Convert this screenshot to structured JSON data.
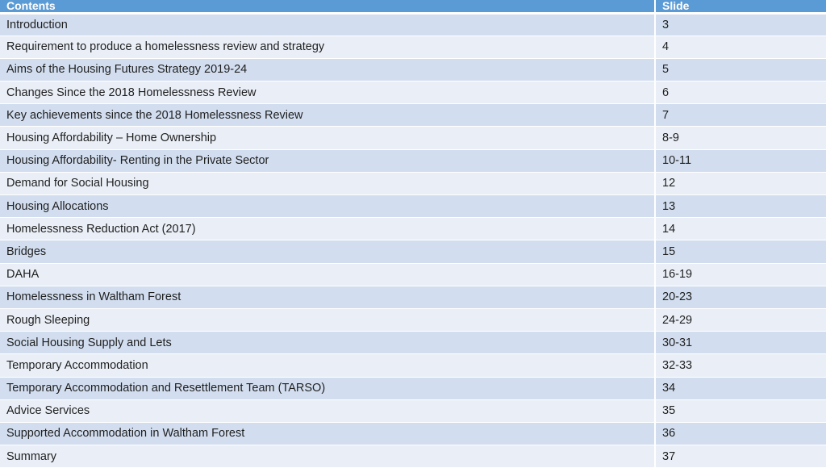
{
  "table": {
    "header": {
      "contents": "Contents",
      "slide": "Slide"
    },
    "rows": [
      {
        "title": "Introduction",
        "slide": "3"
      },
      {
        "title": "Requirement to produce a homelessness review and strategy",
        "slide": "4"
      },
      {
        "title": "Aims of the Housing Futures Strategy 2019-24",
        "slide": "5"
      },
      {
        "title": "Changes Since the 2018 Homelessness Review",
        "slide": "6"
      },
      {
        "title": "Key achievements since the 2018 Homelessness Review",
        "slide": "7"
      },
      {
        "title": "Housing Affordability – Home Ownership",
        "slide": "8-9"
      },
      {
        "title": "Housing Affordability- Renting in the Private Sector",
        "slide": "10-11"
      },
      {
        "title": "Demand for Social Housing",
        "slide": "12"
      },
      {
        "title": "Housing Allocations",
        "slide": "13"
      },
      {
        "title": "Homelessness Reduction Act (2017)",
        "slide": "14"
      },
      {
        "title": "Bridges",
        "slide": "15"
      },
      {
        "title": "DAHA",
        "slide": "16-19"
      },
      {
        "title": "Homelessness in Waltham Forest",
        "slide": "20-23"
      },
      {
        "title": "Rough Sleeping",
        "slide": "24-29"
      },
      {
        "title": "Social Housing Supply and Lets",
        "slide": "30-31"
      },
      {
        "title": "Temporary Accommodation",
        "slide": "32-33"
      },
      {
        "title": "Temporary Accommodation and Resettlement Team (TARSO)",
        "slide": "34"
      },
      {
        "title": "Advice Services",
        "slide": "35"
      },
      {
        "title": "Supported Accommodation in Waltham Forest",
        "slide": "36"
      },
      {
        "title": "Summary",
        "slide": "37"
      }
    ]
  }
}
